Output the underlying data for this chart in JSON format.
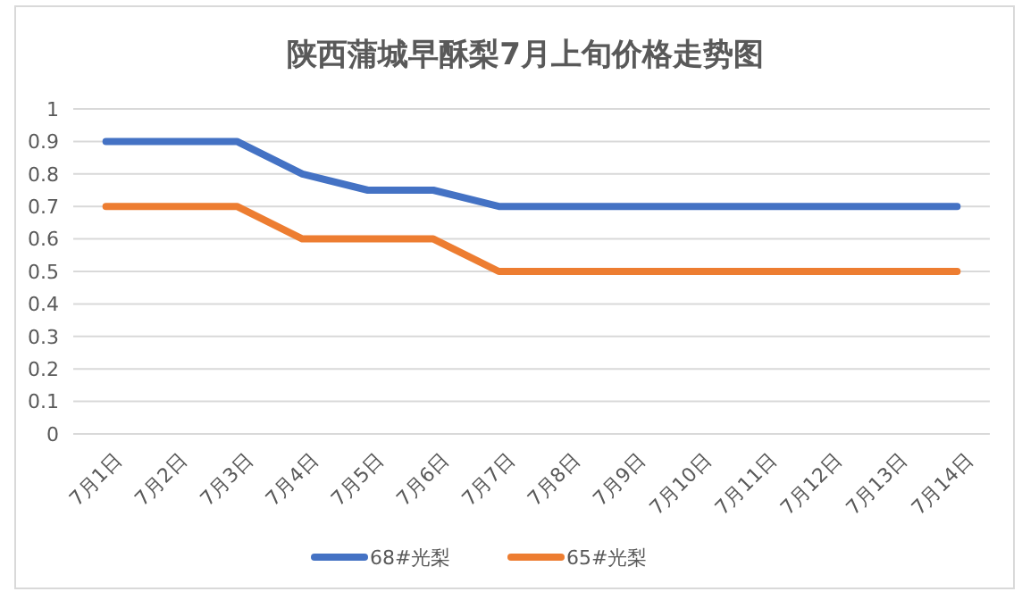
{
  "chart_data": {
    "type": "line",
    "title": "陕西蒲城早酥梨7月上旬价格走势图",
    "categories": [
      "7月1日",
      "7月2日",
      "7月3日",
      "7月4日",
      "7月5日",
      "7月6日",
      "7月7日",
      "7月8日",
      "7月9日",
      "7月10日",
      "7月11日",
      "7月12日",
      "7月13日",
      "7月14日"
    ],
    "series": [
      {
        "name": "68#光梨",
        "color": "#4472c4",
        "values": [
          0.9,
          0.9,
          0.9,
          0.8,
          0.75,
          0.75,
          0.7,
          0.7,
          0.7,
          0.7,
          0.7,
          0.7,
          0.7,
          0.7
        ]
      },
      {
        "name": "65#光梨",
        "color": "#ed7d31",
        "values": [
          0.7,
          0.7,
          0.7,
          0.6,
          0.6,
          0.6,
          0.5,
          0.5,
          0.5,
          0.5,
          0.5,
          0.5,
          0.5,
          0.5
        ]
      }
    ],
    "ylim": [
      0,
      1
    ],
    "yticks": [
      0,
      0.1,
      0.2,
      0.3,
      0.4,
      0.5,
      0.6,
      0.7,
      0.8,
      0.9,
      1
    ],
    "grid": "y",
    "legend": "bottom",
    "marker": "none",
    "line_style": "solid"
  }
}
